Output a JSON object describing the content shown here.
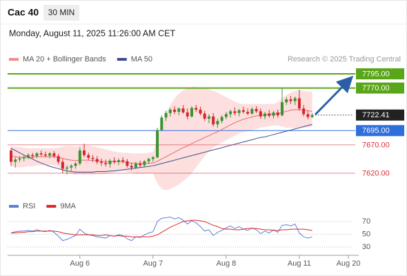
{
  "header": {
    "symbol": "Cac 40",
    "interval": "30 MIN",
    "datetime": "Monday, August 11, 2025 11:26:00 AM CET"
  },
  "chart_data": [
    {
      "type": "candlestick",
      "source": "Research © 2025 Trading Central",
      "xlim": [
        -0.8,
        80.8
      ],
      "ylim": [
        7590,
        7810
      ],
      "up_color": "#3a9330",
      "down_color": "#d4262c",
      "open": [
        7660,
        7640,
        7644,
        7646,
        7648,
        7652,
        7650,
        7655,
        7653,
        7651,
        7655,
        7650,
        7640,
        7628,
        7630,
        7633,
        7637,
        7660,
        7652,
        7647,
        7645,
        7640,
        7638,
        7636,
        7642,
        7640,
        7643,
        7641,
        7633,
        7630,
        7637,
        7634,
        7641,
        7645,
        7648,
        7696,
        7718,
        7726,
        7732,
        7728,
        7734,
        7727,
        7720,
        7735,
        7732,
        7725,
        7716,
        7720,
        7706,
        7712,
        7719,
        7724,
        7729,
        7726,
        7731,
        7728,
        7725,
        7733,
        7729,
        7720,
        7725,
        7721,
        7727,
        7722,
        7745,
        7750,
        7747,
        7752,
        7734,
        7724,
        7719
      ],
      "high": [
        7664,
        7648,
        7650,
        7651,
        7655,
        7656,
        7657,
        7660,
        7658,
        7657,
        7659,
        7654,
        7645,
        7634,
        7636,
        7640,
        7665,
        7672,
        7656,
        7652,
        7650,
        7646,
        7644,
        7645,
        7648,
        7646,
        7648,
        7645,
        7638,
        7640,
        7642,
        7643,
        7647,
        7650,
        7700,
        7722,
        7730,
        7735,
        7738,
        7736,
        7740,
        7734,
        7738,
        7740,
        7737,
        7730,
        7724,
        7726,
        7716,
        7722,
        7728,
        7732,
        7736,
        7733,
        7737,
        7734,
        7736,
        7738,
        7734,
        7728,
        7731,
        7730,
        7732,
        7770,
        7754,
        7756,
        7755,
        7767,
        7740,
        7730,
        7726
      ],
      "low": [
        7633,
        7630,
        7640,
        7641,
        7645,
        7646,
        7647,
        7650,
        7648,
        7646,
        7647,
        7636,
        7620,
        7618,
        7624,
        7628,
        7634,
        7648,
        7643,
        7640,
        7636,
        7633,
        7632,
        7630,
        7636,
        7634,
        7637,
        7630,
        7625,
        7627,
        7630,
        7631,
        7636,
        7640,
        7646,
        7694,
        7712,
        7720,
        7724,
        7722,
        7725,
        7715,
        7718,
        7728,
        7722,
        7712,
        7708,
        7702,
        7700,
        7708,
        7715,
        7718,
        7722,
        7720,
        7725,
        7722,
        7723,
        7726,
        7716,
        7715,
        7718,
        7716,
        7718,
        7720,
        7740,
        7742,
        7740,
        7730,
        7720,
        7715,
        7717
      ],
      "close": [
        7640,
        7644,
        7646,
        7648,
        7652,
        7650,
        7655,
        7653,
        7651,
        7655,
        7650,
        7640,
        7628,
        7630,
        7633,
        7637,
        7660,
        7652,
        7647,
        7645,
        7640,
        7638,
        7636,
        7642,
        7640,
        7643,
        7641,
        7633,
        7630,
        7637,
        7634,
        7641,
        7645,
        7648,
        7696,
        7718,
        7726,
        7732,
        7728,
        7734,
        7727,
        7720,
        7735,
        7732,
        7725,
        7716,
        7720,
        7706,
        7712,
        7719,
        7724,
        7729,
        7726,
        7731,
        7728,
        7725,
        7733,
        7729,
        7720,
        7725,
        7721,
        7727,
        7722,
        7745,
        7750,
        7747,
        7752,
        7734,
        7724,
        7719,
        7722.41
      ],
      "series": [
        {
          "name": "MA 20 + Bollinger Bands",
          "color": "#e46a6a",
          "band_color": "#fcd4d4",
          "values": [
            7650,
            7649,
            7648,
            7648,
            7648,
            7648,
            7649,
            7649,
            7649,
            7649,
            7649,
            7648,
            7646,
            7644,
            7643,
            7642,
            7643,
            7643,
            7643,
            7642,
            7642,
            7641,
            7640,
            7640,
            7640,
            7640,
            7640,
            7639,
            7638,
            7637,
            7637,
            7637,
            7638,
            7638,
            7641,
            7645,
            7649,
            7653,
            7657,
            7661,
            7665,
            7668,
            7672,
            7676,
            7679,
            7683,
            7686,
            7690,
            7693,
            7697,
            7701,
            7705,
            7709,
            7712,
            7715,
            7717,
            7719,
            7721,
            7722,
            7723,
            7724,
            7724,
            7725,
            7727,
            7729,
            7731,
            7732,
            7732,
            7731,
            7730,
            7729
          ],
          "upper": [
            7668,
            7667,
            7666,
            7665,
            7664,
            7664,
            7664,
            7664,
            7664,
            7664,
            7664,
            7665,
            7667,
            7668,
            7668,
            7667,
            7668,
            7669,
            7668,
            7667,
            7666,
            7664,
            7662,
            7660,
            7658,
            7657,
            7656,
            7656,
            7655,
            7655,
            7655,
            7655,
            7656,
            7657,
            7680,
            7705,
            7725,
            7740,
            7752,
            7760,
            7766,
            7770,
            7772,
            7772,
            7771,
            7770,
            7768,
            7765,
            7762,
            7758,
            7754,
            7750,
            7746,
            7743,
            7742,
            7742,
            7742,
            7742,
            7742,
            7742,
            7742,
            7742,
            7745,
            7752,
            7758,
            7762,
            7765,
            7766,
            7765,
            7764,
            7763
          ],
          "lower": [
            7632,
            7631,
            7630,
            7631,
            7632,
            7632,
            7634,
            7634,
            7634,
            7634,
            7634,
            7631,
            7625,
            7620,
            7618,
            7617,
            7618,
            7617,
            7618,
            7617,
            7618,
            7618,
            7618,
            7620,
            7622,
            7623,
            7624,
            7622,
            7621,
            7619,
            7619,
            7619,
            7620,
            7619,
            7602,
            7592,
            7590,
            7592,
            7596,
            7600,
            7606,
            7612,
            7620,
            7630,
            7640,
            7650,
            7658,
            7665,
            7670,
            7674,
            7678,
            7682,
            7686,
            7690,
            7692,
            7694,
            7696,
            7698,
            7700,
            7702,
            7703,
            7704,
            7704,
            7702,
            7700,
            7700,
            7699,
            7699,
            7700,
            7701,
            7702
          ]
        },
        {
          "name": "MA 50",
          "color": "#3d4c8c",
          "values": [
            7664,
            7660,
            7656,
            7652,
            7648,
            7645,
            7641,
            7638,
            7635,
            7632,
            7630,
            7628,
            7626,
            7624,
            7623,
            7622,
            7622,
            7622,
            7622,
            7622,
            7623,
            7623,
            7623,
            7624,
            7624,
            7625,
            7626,
            7627,
            7628,
            7629,
            7630,
            7631,
            7632,
            7633,
            7635,
            7637,
            7639,
            7641,
            7643,
            7645,
            7647,
            7649,
            7651,
            7653,
            7655,
            7657,
            7659,
            7661,
            7663,
            7665,
            7667,
            7669,
            7671,
            7673,
            7675,
            7677,
            7679,
            7681,
            7683,
            7684,
            7686,
            7688,
            7690,
            7692,
            7694,
            7696,
            7698,
            7700,
            7702,
            7704,
            7706
          ]
        }
      ],
      "levels": [
        {
          "value": 7795,
          "label": "7795.00",
          "color": "#5aa61a",
          "boxed": true,
          "line": "solid"
        },
        {
          "value": 7770,
          "label": "7770.00",
          "color": "#5aa61a",
          "boxed": true,
          "line": "solid"
        },
        {
          "value": 7722.41,
          "color": "#222222",
          "boxed": true,
          "line": "dotted"
        },
        {
          "value": 7695,
          "label": "7695.00",
          "color": "#2f6fdb",
          "boxed": true,
          "line": "solid"
        },
        {
          "value": 7670,
          "label": "7670.00",
          "color": "#d9303a",
          "boxed": false,
          "line": "solid"
        },
        {
          "value": 7620,
          "label": "7620.00",
          "color": "#d9303a",
          "boxed": false,
          "line": "solid"
        }
      ]
    },
    {
      "type": "line",
      "xlim": [
        -0.8,
        80.8
      ],
      "ylim": [
        20,
        80
      ],
      "yticks": [
        30,
        50,
        70
      ],
      "xticks": [
        {
          "value": 16,
          "label": "Aug 6"
        },
        {
          "value": 33,
          "label": "Aug 7"
        },
        {
          "value": 50,
          "label": "Aug 8"
        },
        {
          "value": 67,
          "label": "Aug 11"
        },
        {
          "value": 78.4,
          "label": "Aug 20"
        }
      ],
      "series": [
        {
          "name": "RSI",
          "color": "#5b7fd6",
          "values": [
            52,
            54,
            55,
            55,
            56,
            55,
            57,
            55,
            54,
            56,
            53,
            47,
            40,
            42,
            45,
            48,
            58,
            52,
            49,
            48,
            46,
            45,
            44,
            48,
            47,
            49,
            48,
            43,
            40,
            46,
            45,
            49,
            52,
            54,
            70,
            75,
            76,
            77,
            74,
            76,
            72,
            66,
            71,
            68,
            62,
            55,
            57,
            48,
            53,
            56,
            60,
            63,
            59,
            62,
            58,
            56,
            60,
            57,
            51,
            55,
            52,
            57,
            53,
            64,
            65,
            63,
            66,
            52,
            46,
            44,
            46
          ]
        },
        {
          "name": "9MA",
          "color": "#e02626",
          "values": [
            52,
            52,
            53,
            53,
            54,
            54,
            55,
            55,
            55,
            55,
            55,
            54,
            52,
            51,
            50,
            49,
            49,
            49,
            49,
            49,
            48,
            48,
            49,
            48,
            47,
            48,
            47,
            47,
            46,
            46,
            46,
            46,
            46,
            47,
            49,
            53,
            57,
            61,
            64,
            67,
            70,
            71,
            72,
            72,
            71,
            70,
            67,
            64,
            62,
            59,
            58,
            58,
            57,
            57,
            58,
            59,
            59,
            59,
            58,
            57,
            57,
            56,
            56,
            57,
            57,
            58,
            58,
            58,
            58,
            57,
            56
          ]
        }
      ]
    }
  ]
}
